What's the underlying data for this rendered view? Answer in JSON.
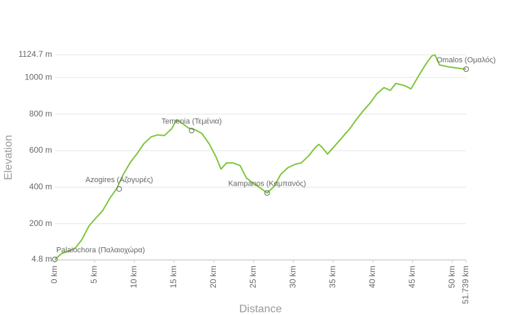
{
  "chart_data": {
    "type": "line",
    "y_label": "Elevation",
    "x_label": "Distance",
    "color": "#7cc638",
    "grid": true,
    "xlim": [
      0,
      51.739
    ],
    "ylim": [
      0,
      1124.7
    ],
    "xticks": [
      {
        "value": 0,
        "label": "0 km"
      },
      {
        "value": 5,
        "label": "5 km"
      },
      {
        "value": 10,
        "label": "10 km"
      },
      {
        "value": 15,
        "label": "15 km"
      },
      {
        "value": 20,
        "label": "20 km"
      },
      {
        "value": 25,
        "label": "25 km"
      },
      {
        "value": 30,
        "label": "30 km"
      },
      {
        "value": 35,
        "label": "35 km"
      },
      {
        "value": 40,
        "label": "40 km"
      },
      {
        "value": 45,
        "label": "45 km"
      },
      {
        "value": 50,
        "label": "50 km"
      },
      {
        "value": 51.739,
        "label": "51.739 km"
      }
    ],
    "yticks": [
      {
        "value": 4.8,
        "label": "4.8 m"
      },
      {
        "value": 200,
        "label": "200 m"
      },
      {
        "value": 400,
        "label": "400 m"
      },
      {
        "value": 600,
        "label": "600 m"
      },
      {
        "value": 800,
        "label": "800 m"
      },
      {
        "value": 1000,
        "label": "1000 m"
      },
      {
        "value": 1124.7,
        "label": "1124.7 m"
      }
    ],
    "x": [
      0,
      0.9,
      1.7,
      2.6,
      3.4,
      4.3,
      5.2,
      6.0,
      6.9,
      7.8,
      8.6,
      9.5,
      10.3,
      11.2,
      12.1,
      12.9,
      13.8,
      14.7,
      15.3,
      16,
      16.8,
      17.7,
      18.5,
      19.4,
      20.3,
      20.9,
      21.6,
      22.4,
      23.3,
      24.1,
      25,
      25.9,
      26.7,
      27.6,
      28.4,
      29.3,
      30.2,
      31,
      31.9,
      32.8,
      33.2,
      33.6,
      34.3,
      35.3,
      36.2,
      37.1,
      37.9,
      38.8,
      39.7,
      40.5,
      41.4,
      42.2,
      42.9,
      44,
      44.8,
      45.7,
      46.6,
      47.4,
      47.8,
      48.4,
      49.6,
      50.9,
      51.739
    ],
    "values": [
      4.8,
      38,
      49,
      68,
      113,
      188,
      233,
      270,
      338,
      394,
      469,
      536,
      581,
      638,
      675,
      686,
      683,
      720,
      769,
      750,
      724,
      713,
      694,
      638,
      563,
      499,
      533,
      533,
      518,
      450,
      420,
      394,
      368,
      405,
      469,
      506,
      525,
      533,
      570,
      619,
      634,
      619,
      581,
      630,
      675,
      720,
      769,
      818,
      863,
      911,
      945,
      930,
      968,
      956,
      938,
      1005,
      1069,
      1118,
      1124.7,
      1069,
      1058,
      1050,
      1046
    ],
    "waypoints": [
      {
        "name": "Palaiochora (Παλαιοχώρα)",
        "x": 0,
        "y": 4.8
      },
      {
        "name": "Azogires (Αζογυρές)",
        "x": 8.1,
        "y": 390
      },
      {
        "name": "Temenia (Τεμένια)",
        "x": 17.2,
        "y": 710
      },
      {
        "name": "Kampanos (Καμπανός)",
        "x": 26.7,
        "y": 368
      },
      {
        "name": "Omalos (Ομαλός)",
        "x": 51.739,
        "y": 1046
      }
    ]
  }
}
